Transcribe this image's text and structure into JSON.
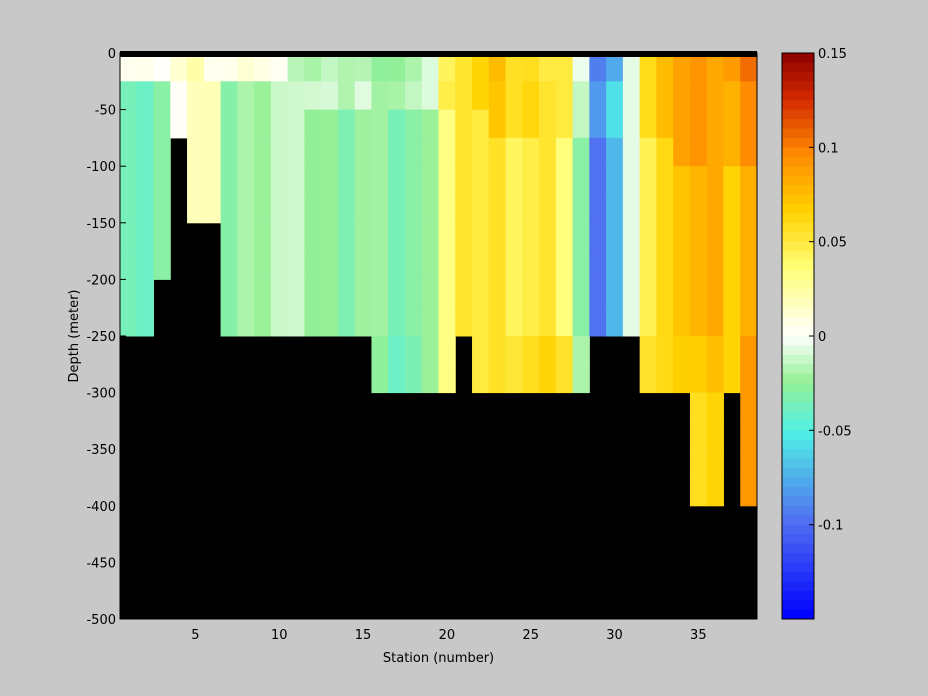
{
  "chart_data": {
    "type": "heatmap",
    "xlabel": "Station (number)",
    "ylabel": "Depth (meter)",
    "x_range": [
      1,
      38
    ],
    "y_range": [
      -500,
      0
    ],
    "x_ticks": [
      5,
      10,
      15,
      20,
      25,
      30,
      35
    ],
    "y_ticks": [
      0,
      -50,
      -100,
      -150,
      -200,
      -250,
      -300,
      -350,
      -400,
      -450,
      -500
    ],
    "stations": [
      1,
      2,
      3,
      4,
      5,
      6,
      7,
      8,
      9,
      10,
      11,
      12,
      13,
      14,
      15,
      16,
      17,
      18,
      19,
      20,
      21,
      22,
      23,
      24,
      25,
      26,
      27,
      28,
      29,
      30,
      31,
      32,
      33,
      34,
      35,
      36,
      37,
      38
    ],
    "bottom_depth": [
      -250,
      -250,
      -200,
      -75,
      -150,
      -150,
      -250,
      -250,
      -250,
      -250,
      -250,
      -250,
      -250,
      -250,
      -250,
      -300,
      -300,
      -300,
      -300,
      -300,
      -250,
      -300,
      -300,
      -300,
      -300,
      -300,
      -300,
      -300,
      -250,
      -250,
      -250,
      -300,
      -300,
      -300,
      -400,
      -400,
      -300,
      -400
    ],
    "values_shallow": [
      0.01,
      0.005,
      -0.005,
      0.015,
      0.02,
      0.01,
      0.005,
      0.005,
      0.01,
      0.0,
      -0.01,
      -0.02,
      -0.02,
      -0.015,
      -0.02,
      -0.02,
      -0.025,
      -0.025,
      -0.005,
      0.04,
      0.06,
      0.065,
      0.07,
      0.06,
      0.055,
      0.055,
      0.05,
      -0.01,
      -0.09,
      -0.08,
      0.0,
      0.06,
      0.07,
      0.09,
      0.09,
      0.09,
      0.09,
      0.1
    ],
    "values_deep": [
      -0.03,
      -0.025,
      -0.02,
      0.02,
      0.03,
      0.025,
      -0.015,
      -0.01,
      -0.005,
      0.0,
      -0.005,
      -0.01,
      -0.015,
      -0.015,
      -0.01,
      -0.015,
      -0.02,
      -0.02,
      -0.005,
      0.045,
      0.06,
      0.065,
      0.065,
      0.06,
      0.06,
      0.06,
      0.05,
      -0.02,
      -0.08,
      -0.06,
      0.0,
      0.06,
      0.07,
      0.09,
      0.09,
      0.09,
      0.08,
      0.09
    ],
    "values_bottom": [
      null,
      null,
      null,
      null,
      null,
      null,
      null,
      null,
      null,
      null,
      null,
      null,
      null,
      null,
      null,
      -0.02,
      -0.025,
      -0.025,
      -0.005,
      0.045,
      null,
      0.065,
      0.065,
      0.07,
      0.07,
      0.07,
      0.07,
      -0.01,
      null,
      null,
      null,
      0.07,
      0.07,
      0.085,
      0.08,
      0.08,
      0.08,
      0.1
    ],
    "values_abyss": [
      null,
      null,
      null,
      null,
      null,
      null,
      null,
      null,
      null,
      null,
      null,
      null,
      null,
      null,
      null,
      null,
      null,
      null,
      null,
      null,
      null,
      null,
      null,
      null,
      null,
      null,
      null,
      null,
      null,
      null,
      null,
      null,
      null,
      null,
      0.07,
      0.07,
      null,
      0.1
    ],
    "colorbar": {
      "min": -0.15,
      "max": 0.15,
      "ticks": [
        0.15,
        0.1,
        0.05,
        0,
        -0.05,
        -0.1
      ],
      "tick_labels": [
        "0.15",
        "0.1",
        "0.05",
        "0",
        "-0.05",
        "-0.1"
      ]
    },
    "mask_color": "#000000",
    "top_bar_color": "#000000"
  }
}
